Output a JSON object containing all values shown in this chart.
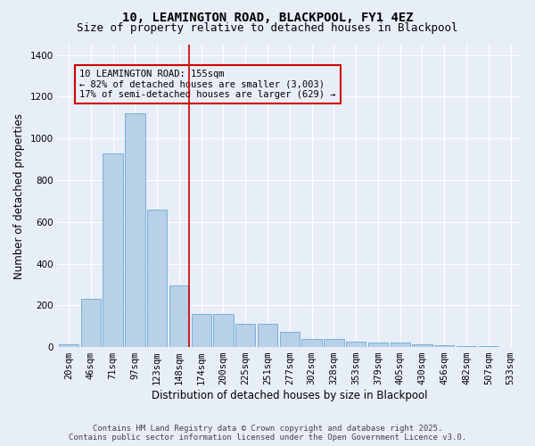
{
  "title": "10, LEAMINGTON ROAD, BLACKPOOL, FY1 4EZ",
  "subtitle": "Size of property relative to detached houses in Blackpool",
  "xlabel": "Distribution of detached houses by size in Blackpool",
  "ylabel": "Number of detached properties",
  "categories": [
    "20sqm",
    "46sqm",
    "71sqm",
    "97sqm",
    "123sqm",
    "148sqm",
    "174sqm",
    "200sqm",
    "225sqm",
    "251sqm",
    "277sqm",
    "302sqm",
    "328sqm",
    "353sqm",
    "379sqm",
    "405sqm",
    "430sqm",
    "456sqm",
    "482sqm",
    "507sqm",
    "533sqm"
  ],
  "values": [
    15,
    230,
    930,
    1120,
    660,
    295,
    160,
    160,
    110,
    110,
    75,
    40,
    40,
    25,
    20,
    20,
    15,
    8,
    5,
    5,
    0
  ],
  "bar_color": "#b8d0e8",
  "bar_edge_color": "#6aaad4",
  "background_color": "#e8eef8",
  "grid_color": "#ffffff",
  "annotation_text": "10 LEAMINGTON ROAD: 155sqm\n← 82% of detached houses are smaller (3,003)\n17% of semi-detached houses are larger (629) →",
  "annotation_box_color": "#cc0000",
  "ylim": [
    0,
    1450
  ],
  "yticks": [
    0,
    200,
    400,
    600,
    800,
    1000,
    1200,
    1400
  ],
  "footer_text": "Contains HM Land Registry data © Crown copyright and database right 2025.\nContains public sector information licensed under the Open Government Licence v3.0.",
  "title_fontsize": 10,
  "subtitle_fontsize": 9,
  "xlabel_fontsize": 8.5,
  "ylabel_fontsize": 8.5,
  "tick_fontsize": 7.5,
  "annotation_fontsize": 7.5,
  "footer_fontsize": 6.5
}
